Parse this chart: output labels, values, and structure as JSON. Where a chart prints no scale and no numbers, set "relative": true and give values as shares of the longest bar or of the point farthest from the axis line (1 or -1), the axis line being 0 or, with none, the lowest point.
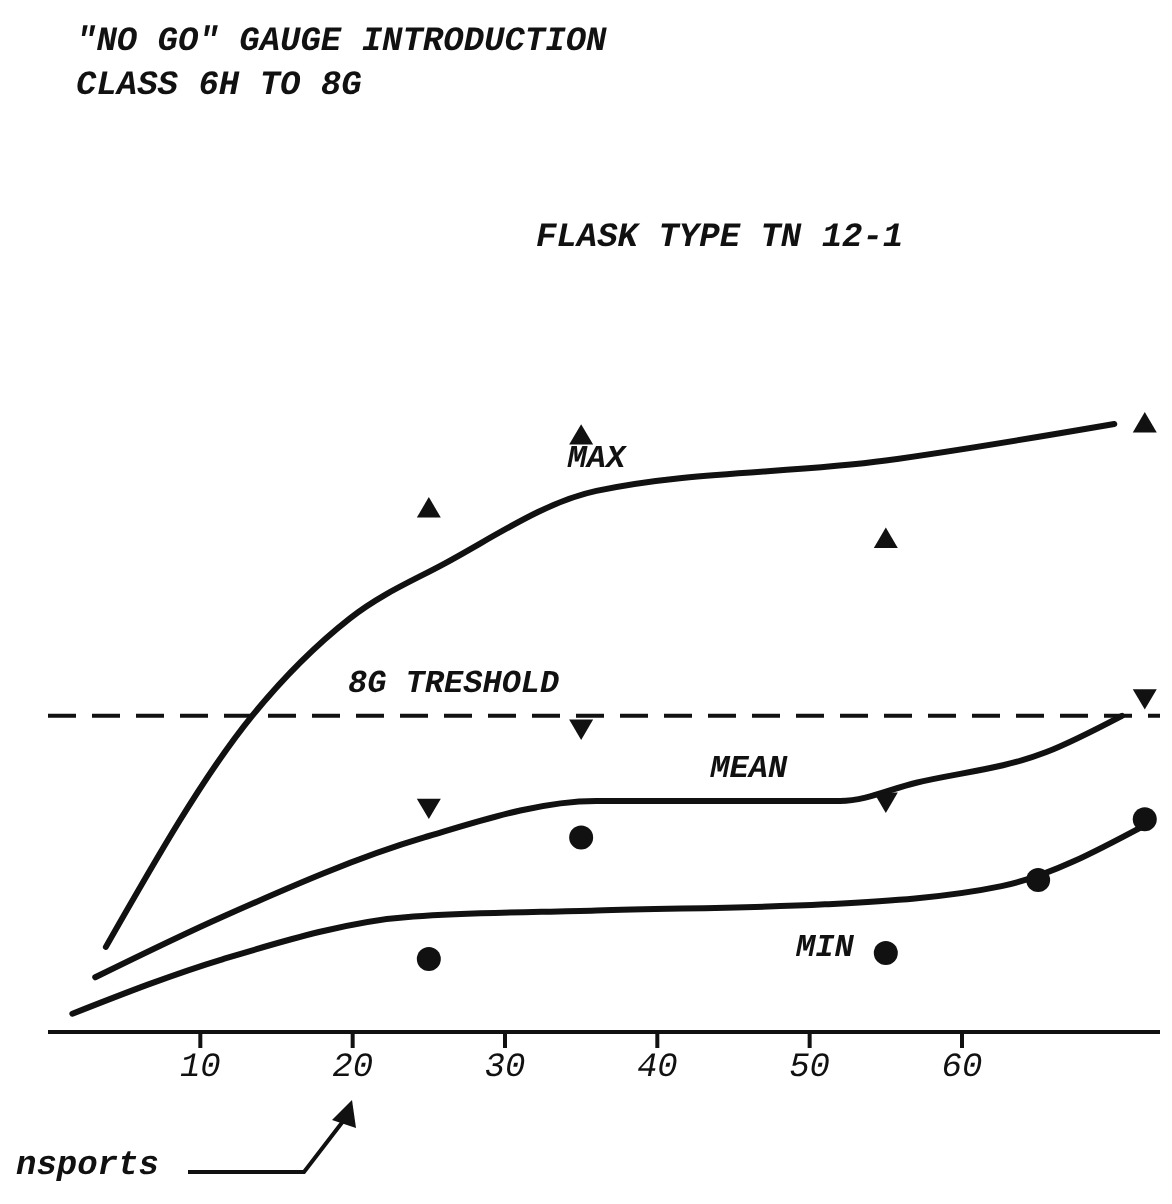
{
  "chart_data": {
    "type": "line",
    "title": "\"NO GO\" GAUGE INTRODUCTION",
    "subtitle": "CLASS 6H TO 8G",
    "annotations": [
      "FLASK TYPE TN 12-1",
      "nsports"
    ],
    "relative": true,
    "xlim": [
      0,
      73
    ],
    "xticks": [
      10,
      20,
      30,
      40,
      50,
      60
    ],
    "line_style": "solid",
    "ref_lines": [
      {
        "axis": "y",
        "value": 0.52,
        "label": "8G TRESHOLD",
        "line_style": "dashed",
        "color": "#111111"
      }
    ],
    "series": [
      {
        "name": "MAX",
        "color": "#111111",
        "x": [
          3.8,
          13.4,
          19.8,
          26,
          36,
          55,
          70
        ],
        "values": [
          0.14,
          0.52,
          0.68,
          0.77,
          0.89,
          0.94,
          1.0
        ]
      },
      {
        "name": "MEAN",
        "color": "#111111",
        "x": [
          3.1,
          11.5,
          24.7,
          36,
          46,
          52,
          57,
          65.5,
          70.5
        ],
        "values": [
          0.09,
          0.19,
          0.32,
          0.38,
          0.38,
          0.38,
          0.41,
          0.46,
          0.52
        ]
      },
      {
        "name": "MIN",
        "color": "#111111",
        "x": [
          1.6,
          11.5,
          24,
          36,
          51,
          62.6,
          72
        ],
        "values": [
          0.03,
          0.12,
          0.19,
          0.2,
          0.21,
          0.24,
          0.34
        ]
      },
      {
        "type": "scatter",
        "marker": "triangle",
        "color": "#111111",
        "x": [
          25,
          35,
          55,
          72
        ],
        "values": [
          0.86,
          0.98,
          0.81,
          1.0
        ]
      },
      {
        "type": "scatter",
        "marker": "triangle-down",
        "color": "#111111",
        "x": [
          25,
          35,
          55,
          72
        ],
        "values": [
          0.37,
          0.5,
          0.38,
          0.55
        ]
      },
      {
        "type": "scatter",
        "marker": "circle",
        "color": "#111111",
        "x": [
          25,
          35,
          55,
          65,
          72
        ],
        "values": [
          0.12,
          0.32,
          0.13,
          0.25,
          0.35
        ]
      }
    ]
  }
}
